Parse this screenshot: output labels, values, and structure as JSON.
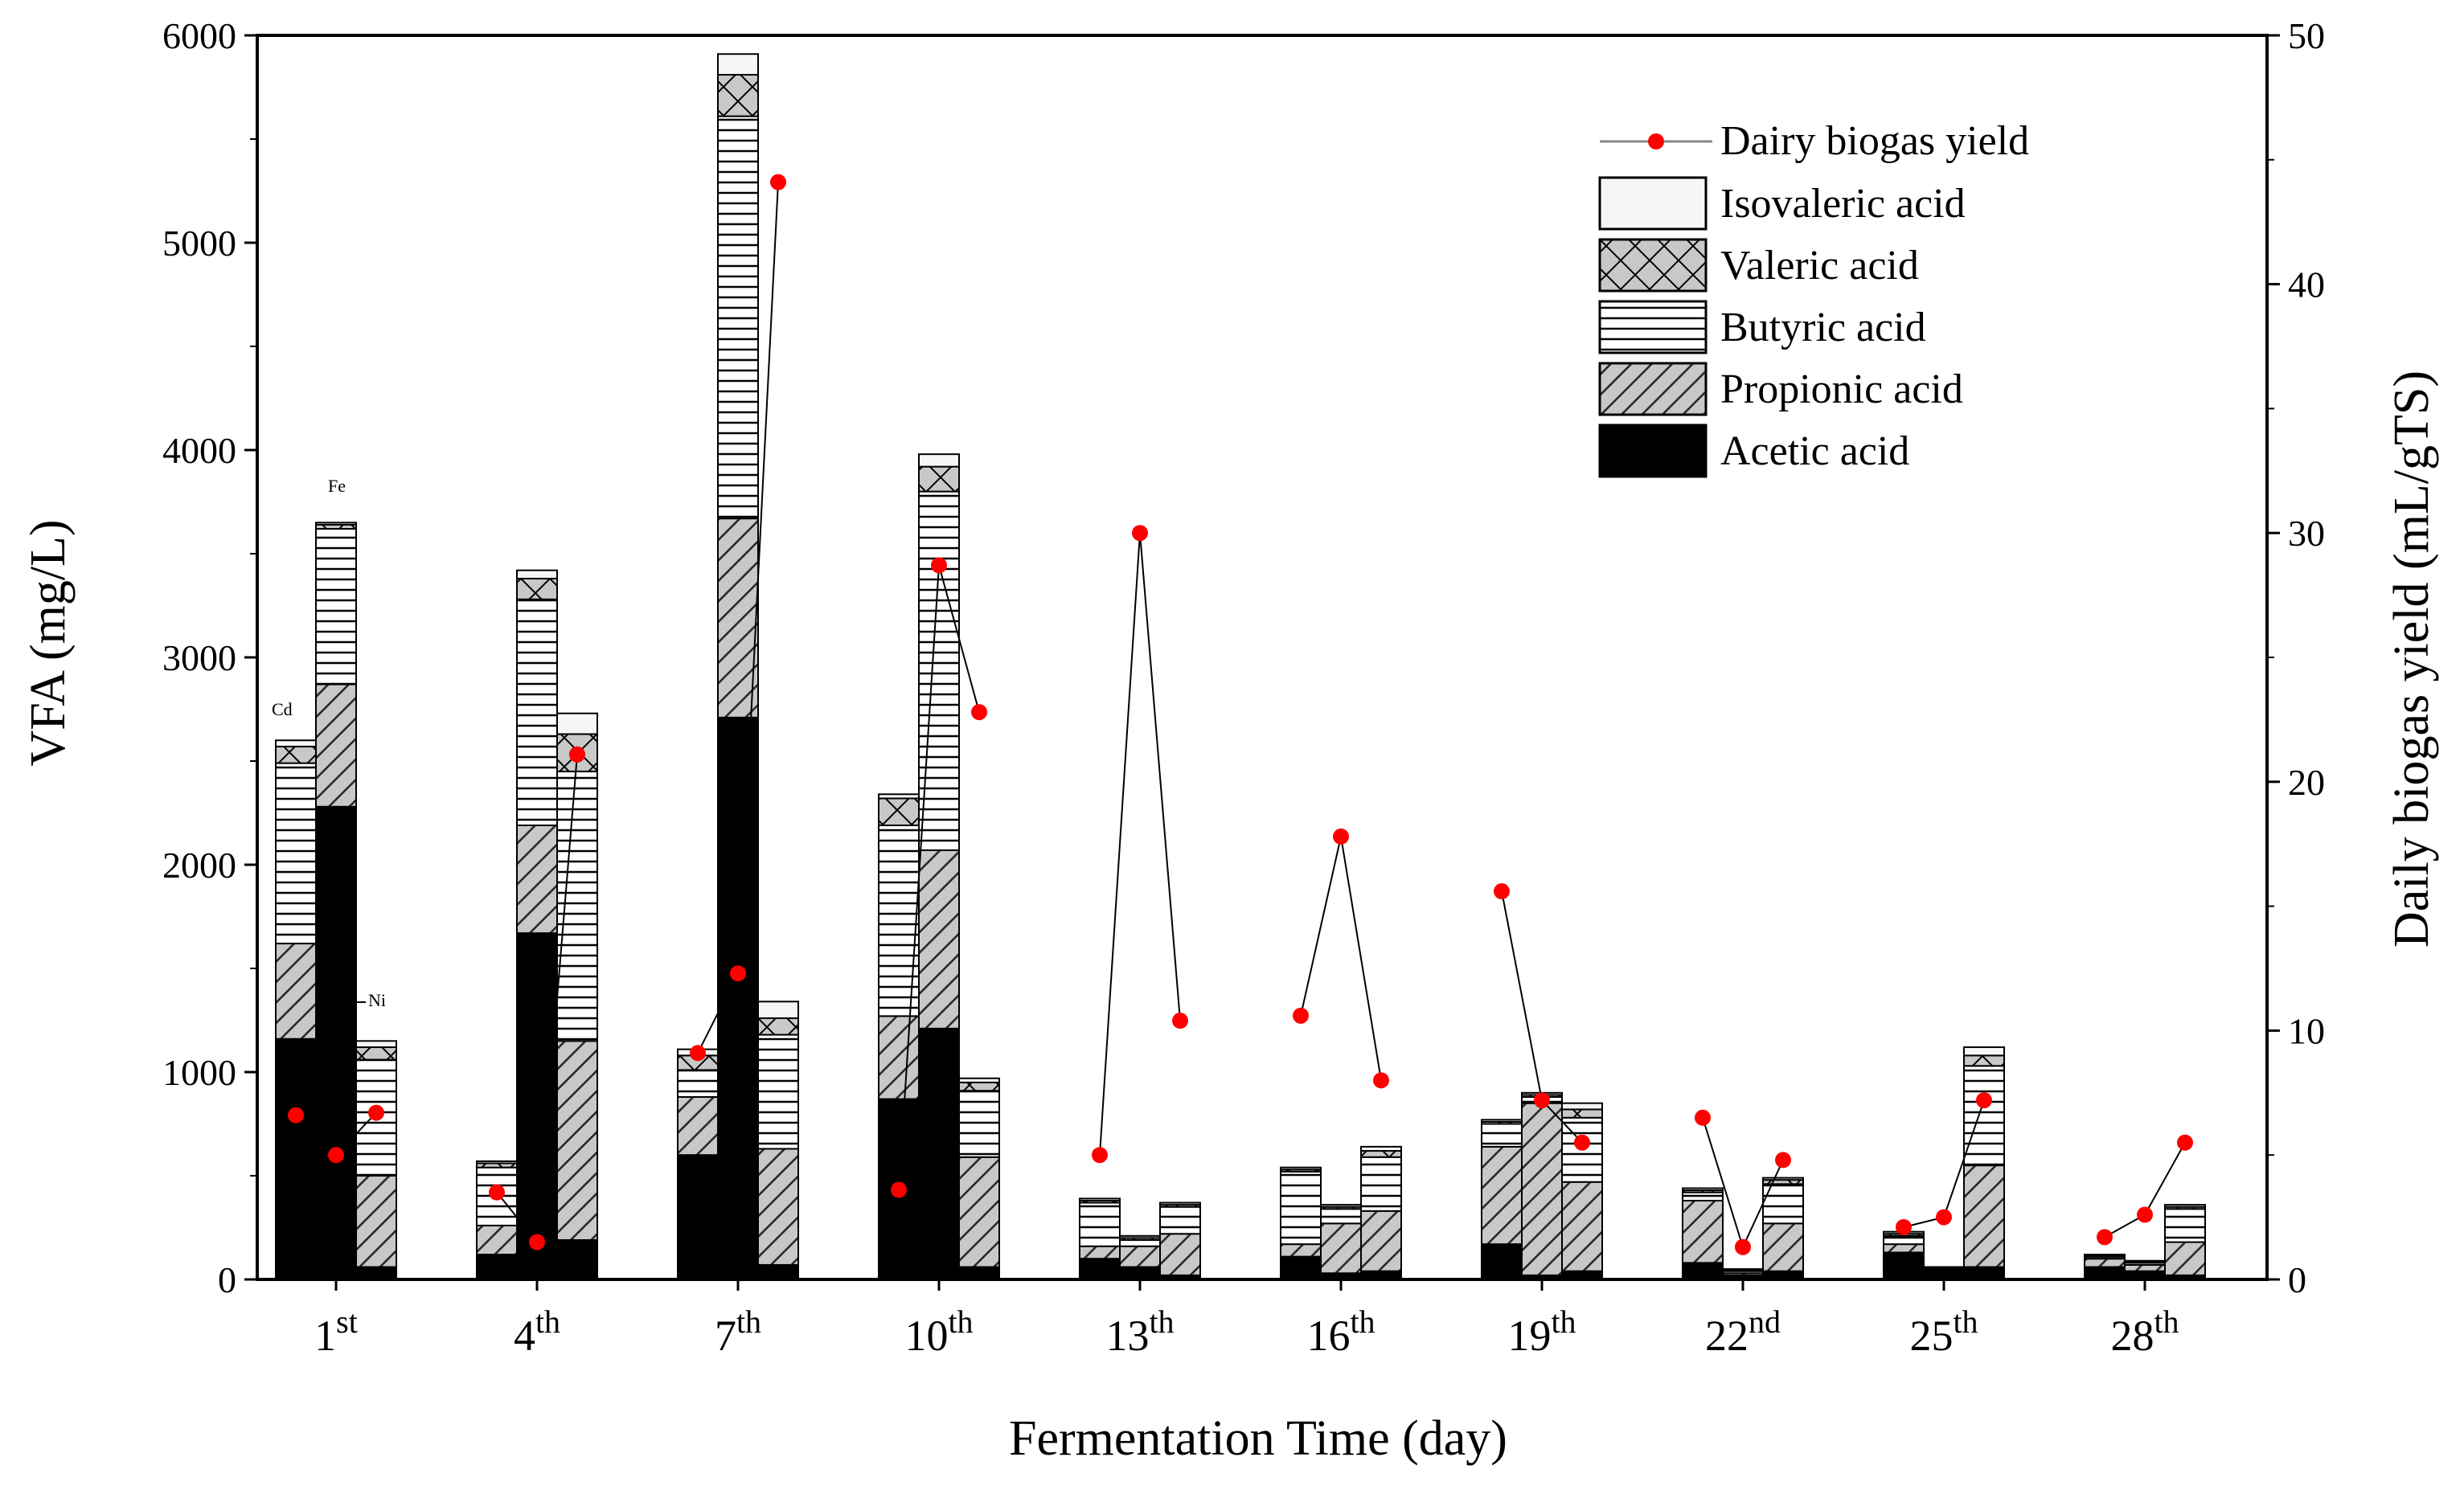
{
  "chart_data": {
    "type": "bar",
    "subtype": "stacked-grouped-bar-with-line",
    "xlabel": "Fermentation Time (day)",
    "ylabel": "VFA (mg/L)",
    "y2label": "Daily biogas yield (mL/gTS)",
    "ylim": [
      0,
      6000
    ],
    "y2lim": [
      0,
      50
    ],
    "yticks": [
      "0",
      "1000",
      "2000",
      "3000",
      "4000",
      "5000",
      "6000"
    ],
    "y2ticks": [
      "0",
      "10",
      "20",
      "30",
      "40",
      "50"
    ],
    "groups": [
      {
        "num": "1",
        "suffix": "st"
      },
      {
        "num": "4",
        "suffix": "th"
      },
      {
        "num": "7",
        "suffix": "th"
      },
      {
        "num": "10",
        "suffix": "th"
      },
      {
        "num": "13",
        "suffix": "th"
      },
      {
        "num": "16",
        "suffix": "th"
      },
      {
        "num": "19",
        "suffix": "th"
      },
      {
        "num": "22",
        "suffix": "nd"
      },
      {
        "num": "25",
        "suffix": "th"
      },
      {
        "num": "28",
        "suffix": "th"
      }
    ],
    "bars_per_group": [
      "Cd",
      "Fe",
      "Ni"
    ],
    "annotations": {
      "Cd": "Cd",
      "Fe": "Fe",
      "Ni": "Ni"
    },
    "components": [
      "Acetic acid",
      "Propionic acid",
      "Butyric acid",
      "Valeric acid",
      "Isovaleric acid"
    ],
    "legend": [
      "Dairy biogas yield",
      "Isovaleric acid",
      "Valeric acid",
      "Butyric acid",
      "Propionic acid",
      "Acetic acid"
    ],
    "legend_position": "top-right",
    "bars": [
      [
        [
          1160,
          460,
          870,
          80,
          30
        ],
        [
          2280,
          590,
          750,
          20,
          10
        ],
        [
          60,
          440,
          560,
          60,
          30
        ]
      ],
      [
        [
          120,
          140,
          280,
          20,
          10
        ],
        [
          1670,
          520,
          1090,
          100,
          40
        ],
        [
          190,
          960,
          1300,
          180,
          100
        ]
      ],
      [
        [
          600,
          280,
          130,
          70,
          30
        ],
        [
          2710,
          960,
          1940,
          200,
          100
        ],
        [
          70,
          560,
          550,
          80,
          80
        ]
      ],
      [
        [
          870,
          400,
          920,
          130,
          20
        ],
        [
          1210,
          860,
          1730,
          120,
          60
        ],
        [
          60,
          530,
          320,
          40,
          20
        ]
      ],
      [
        [
          100,
          60,
          210,
          10,
          10
        ],
        [
          60,
          100,
          30,
          10,
          10
        ],
        [
          20,
          200,
          130,
          10,
          10
        ]
      ],
      [
        [
          110,
          60,
          350,
          10,
          10
        ],
        [
          30,
          240,
          70,
          10,
          10
        ],
        [
          40,
          290,
          260,
          30,
          20
        ]
      ],
      [
        [
          170,
          470,
          110,
          10,
          10
        ],
        [
          20,
          830,
          30,
          10,
          10
        ],
        [
          40,
          430,
          310,
          40,
          30
        ]
      ],
      [
        [
          80,
          300,
          40,
          10,
          10
        ],
        [
          20,
          10,
          10,
          5,
          5
        ],
        [
          40,
          230,
          190,
          20,
          10
        ]
      ],
      [
        [
          130,
          40,
          40,
          10,
          10
        ],
        [
          40,
          5,
          5,
          5,
          5
        ],
        [
          60,
          490,
          480,
          50,
          40
        ]
      ],
      [
        [
          60,
          40,
          10,
          5,
          5
        ],
        [
          40,
          30,
          10,
          5,
          5
        ],
        [
          20,
          160,
          160,
          10,
          10
        ]
      ]
    ],
    "biogas_yield": [
      [
        6.6,
        5.0,
        6.7
      ],
      [
        3.5,
        1.5,
        21.1
      ],
      [
        9.1,
        12.3,
        44.1
      ],
      [
        3.6,
        28.7,
        22.8
      ],
      [
        5.0,
        30.0,
        10.4
      ],
      [
        10.6,
        17.8,
        8.0
      ],
      [
        15.6,
        7.2,
        5.5
      ],
      [
        6.5,
        1.3,
        4.8
      ],
      [
        2.1,
        2.5,
        7.2
      ],
      [
        1.7,
        2.6,
        5.5
      ]
    ]
  }
}
